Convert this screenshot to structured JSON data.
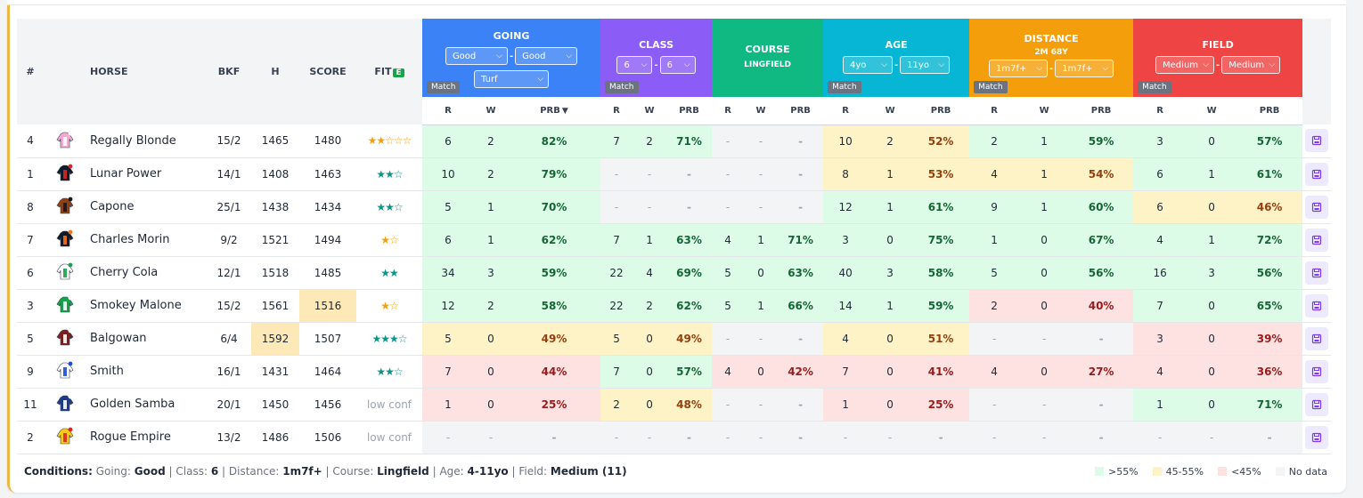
{
  "headers": {
    "num": "#",
    "horse": "HORSE",
    "bkf": "BKF",
    "h": "H",
    "score": "SCORE",
    "fit": "FIT",
    "fit_badge": "E"
  },
  "groups": [
    {
      "key": "going",
      "title": "GOING",
      "color": "#3b82f6",
      "selects": [
        [
          "Good",
          "Good"
        ],
        [
          "Turf"
        ]
      ],
      "match": "Match"
    },
    {
      "key": "class",
      "title": "CLASS",
      "color": "#8b5cf6",
      "selects": [
        [
          "6",
          "6"
        ]
      ],
      "match": "Match"
    },
    {
      "key": "course",
      "title": "COURSE",
      "subtitle": "LINGFIELD",
      "color": "#10b981",
      "selects": [],
      "match": ""
    },
    {
      "key": "age",
      "title": "AGE",
      "color": "#06b6d4",
      "selects": [
        [
          "4yo",
          "11yo"
        ]
      ],
      "match": "Match"
    },
    {
      "key": "distance",
      "title": "DISTANCE",
      "subtitle": "2M 68Y",
      "color": "#f59e0b",
      "selects": [
        [
          "1m7f+",
          "1m7f+"
        ]
      ],
      "match": "Match"
    },
    {
      "key": "field",
      "title": "FIELD",
      "color": "#ef4444",
      "selects": [
        [
          "Medium",
          "Medium"
        ]
      ],
      "match": "Match"
    }
  ],
  "subheaders": {
    "r": "R",
    "w": "W",
    "prb": "PRB",
    "sort_arrow": "▼"
  },
  "rows": [
    {
      "num": "4",
      "horse": "Regally Blonde",
      "bkf": "15/2",
      "h": "1465",
      "score": "1480",
      "fit": "★★☆☆☆",
      "fit_color": "#f59e0b",
      "silk": [
        "#f9a8d4",
        "#fff"
      ],
      "h_hl": false,
      "score_hl": false,
      "stats": [
        [
          "6",
          "2",
          "82%",
          "g"
        ],
        [
          "7",
          "2",
          "71%",
          "g"
        ],
        [
          "-",
          "-",
          "-",
          "n"
        ],
        [
          "10",
          "2",
          "52%",
          "y"
        ],
        [
          "2",
          "1",
          "59%",
          "g"
        ],
        [
          "3",
          "0",
          "57%",
          "g"
        ]
      ]
    },
    {
      "num": "1",
      "horse": "Lunar Power",
      "bkf": "14/1",
      "h": "1408",
      "score": "1463",
      "fit": "★★☆",
      "fit_color": "#0d9488",
      "silk": [
        "#111827",
        "#dc2626"
      ],
      "h_hl": false,
      "score_hl": false,
      "stats": [
        [
          "10",
          "2",
          "79%",
          "g"
        ],
        [
          "-",
          "-",
          "-",
          "n"
        ],
        [
          "-",
          "-",
          "-",
          "n"
        ],
        [
          "8",
          "1",
          "53%",
          "y"
        ],
        [
          "4",
          "1",
          "54%",
          "y"
        ],
        [
          "6",
          "1",
          "61%",
          "g"
        ]
      ]
    },
    {
      "num": "8",
      "horse": "Capone",
      "bkf": "25/1",
      "h": "1438",
      "score": "1434",
      "fit": "★★☆",
      "fit_color": "#0d9488",
      "silk": [
        "#92400e",
        "#111827"
      ],
      "h_hl": false,
      "score_hl": false,
      "stats": [
        [
          "5",
          "1",
          "70%",
          "g"
        ],
        [
          "-",
          "-",
          "-",
          "n"
        ],
        [
          "-",
          "-",
          "-",
          "n"
        ],
        [
          "12",
          "1",
          "61%",
          "g"
        ],
        [
          "9",
          "1",
          "60%",
          "g"
        ],
        [
          "6",
          "0",
          "46%",
          "y"
        ]
      ]
    },
    {
      "num": "7",
      "horse": "Charles Morin",
      "bkf": "9/2",
      "h": "1521",
      "score": "1494",
      "fit": "★☆",
      "fit_color": "#f59e0b",
      "silk": [
        "#111827",
        "#f97316"
      ],
      "h_hl": false,
      "score_hl": false,
      "stats": [
        [
          "6",
          "1",
          "62%",
          "g"
        ],
        [
          "7",
          "1",
          "63%",
          "g"
        ],
        [
          "4",
          "1",
          "71%",
          "g"
        ],
        [
          "3",
          "0",
          "75%",
          "g"
        ],
        [
          "1",
          "0",
          "67%",
          "g"
        ],
        [
          "4",
          "1",
          "72%",
          "g"
        ]
      ]
    },
    {
      "num": "6",
      "horse": "Cherry Cola",
      "bkf": "12/1",
      "h": "1518",
      "score": "1485",
      "fit": "★★",
      "fit_color": "#0d9488",
      "silk": [
        "#ffffff",
        "#16a34a"
      ],
      "h_hl": false,
      "score_hl": false,
      "stats": [
        [
          "34",
          "3",
          "59%",
          "g"
        ],
        [
          "22",
          "4",
          "69%",
          "g"
        ],
        [
          "5",
          "0",
          "63%",
          "g"
        ],
        [
          "40",
          "3",
          "58%",
          "g"
        ],
        [
          "5",
          "0",
          "56%",
          "g"
        ],
        [
          "16",
          "3",
          "56%",
          "g"
        ]
      ]
    },
    {
      "num": "3",
      "horse": "Smokey Malone",
      "bkf": "15/2",
      "h": "1561",
      "score": "1516",
      "fit": "★☆",
      "fit_color": "#f59e0b",
      "silk": [
        "#16a34a",
        "#ffffff"
      ],
      "h_hl": false,
      "score_hl": true,
      "stats": [
        [
          "12",
          "2",
          "58%",
          "g"
        ],
        [
          "22",
          "2",
          "62%",
          "g"
        ],
        [
          "5",
          "1",
          "66%",
          "g"
        ],
        [
          "14",
          "1",
          "59%",
          "g"
        ],
        [
          "2",
          "0",
          "40%",
          "r"
        ],
        [
          "7",
          "0",
          "65%",
          "g"
        ]
      ]
    },
    {
      "num": "5",
      "horse": "Balgowan",
      "bkf": "6/4",
      "h": "1592",
      "score": "1507",
      "fit": "★★★☆",
      "fit_color": "#0d9488",
      "silk": [
        "#7f1d1d",
        "#ffffff"
      ],
      "h_hl": true,
      "score_hl": false,
      "stats": [
        [
          "5",
          "0",
          "49%",
          "y"
        ],
        [
          "5",
          "0",
          "49%",
          "y"
        ],
        [
          "-",
          "-",
          "-",
          "n"
        ],
        [
          "4",
          "0",
          "51%",
          "y"
        ],
        [
          "-",
          "-",
          "-",
          "n"
        ],
        [
          "3",
          "0",
          "39%",
          "r"
        ]
      ]
    },
    {
      "num": "9",
      "horse": "Smith",
      "bkf": "16/1",
      "h": "1431",
      "score": "1464",
      "fit": "★★☆",
      "fit_color": "#0d9488",
      "silk": [
        "#ffffff",
        "#1d4ed8"
      ],
      "h_hl": false,
      "score_hl": false,
      "stats": [
        [
          "7",
          "0",
          "44%",
          "r"
        ],
        [
          "7",
          "0",
          "57%",
          "g"
        ],
        [
          "4",
          "0",
          "42%",
          "r"
        ],
        [
          "7",
          "0",
          "41%",
          "r"
        ],
        [
          "4",
          "0",
          "27%",
          "r"
        ],
        [
          "4",
          "0",
          "36%",
          "r"
        ]
      ]
    },
    {
      "num": "11",
      "horse": "Golden Samba",
      "bkf": "20/1",
      "h": "1450",
      "score": "1456",
      "fit": "low conf",
      "fit_color": "#9ca3af",
      "silk": [
        "#1e3a8a",
        "#ffffff"
      ],
      "h_hl": false,
      "score_hl": false,
      "stats": [
        [
          "1",
          "0",
          "25%",
          "r"
        ],
        [
          "2",
          "0",
          "48%",
          "y"
        ],
        [
          "-",
          "-",
          "-",
          "n"
        ],
        [
          "1",
          "0",
          "25%",
          "r"
        ],
        [
          "-",
          "-",
          "-",
          "n"
        ],
        [
          "1",
          "0",
          "71%",
          "g"
        ]
      ]
    },
    {
      "num": "2",
      "horse": "Rogue Empire",
      "bkf": "13/2",
      "h": "1486",
      "score": "1506",
      "fit": "low conf",
      "fit_color": "#9ca3af",
      "silk": [
        "#facc15",
        "#dc2626"
      ],
      "h_hl": false,
      "score_hl": false,
      "stats": [
        [
          "-",
          "-",
          "-",
          "n"
        ],
        [
          "-",
          "-",
          "-",
          "n"
        ],
        [
          "-",
          "-",
          "-",
          "n"
        ],
        [
          "-",
          "-",
          "-",
          "n"
        ],
        [
          "-",
          "-",
          "-",
          "n"
        ],
        [
          "-",
          "-",
          "-",
          "n"
        ]
      ]
    }
  ],
  "footer": {
    "label": "Conditions:",
    "going_label": "Going:",
    "going": "Good",
    "class_label": "Class:",
    "class": "6",
    "distance_label": "Distance:",
    "distance": "1m7f+",
    "course_label": "Course:",
    "course": "Lingfield",
    "age_label": "Age:",
    "age": "4-11yo",
    "field_label": "Field:",
    "field": "Medium (11)"
  },
  "legend": [
    {
      "label": ">55%",
      "color": "#dcfce7"
    },
    {
      "label": "45-55%",
      "color": "#fef3c7"
    },
    {
      "label": "<45%",
      "color": "#fee2e2"
    },
    {
      "label": "No data",
      "color": "#f3f4f6"
    }
  ]
}
